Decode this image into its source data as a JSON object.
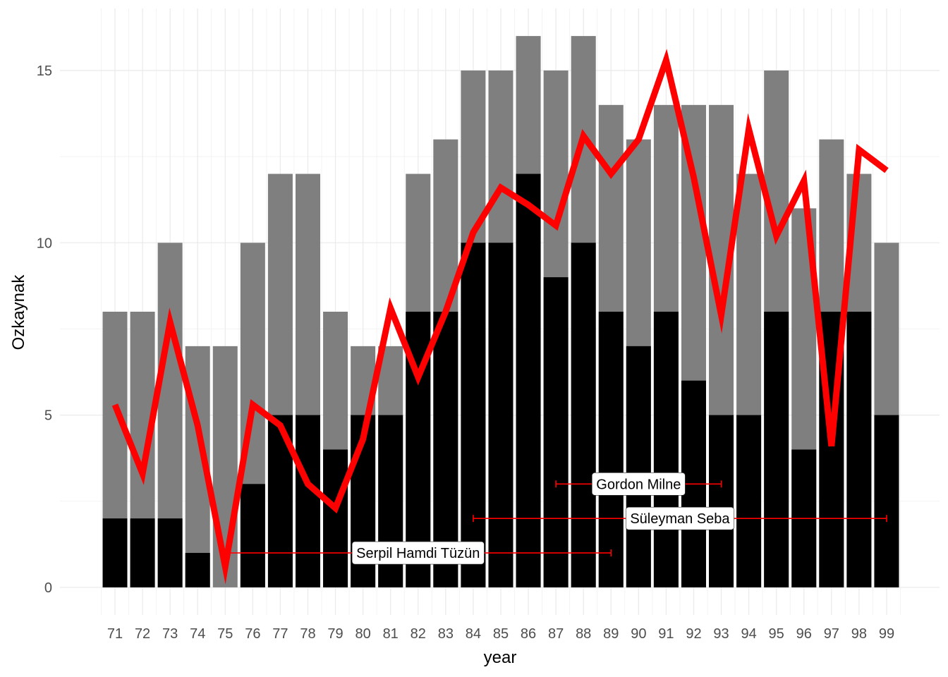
{
  "chart_data": {
    "type": "bar",
    "xlabel": "year",
    "ylabel": "Ozkaynak",
    "ylim": [
      -0.8,
      16.8
    ],
    "yticks": [
      0,
      5,
      10,
      15
    ],
    "grid": true,
    "categories": [
      "71",
      "72",
      "73",
      "74",
      "75",
      "76",
      "77",
      "78",
      "79",
      "80",
      "81",
      "82",
      "83",
      "84",
      "85",
      "86",
      "87",
      "88",
      "89",
      "90",
      "91",
      "92",
      "93",
      "94",
      "95",
      "96",
      "97",
      "98",
      "99"
    ],
    "series": [
      {
        "kind": "bar-total",
        "color": "#7f7f7f",
        "values": [
          8,
          8,
          10,
          7,
          7,
          10,
          12,
          12,
          8,
          7,
          7,
          12,
          13,
          15,
          15,
          16,
          15,
          16,
          14,
          13,
          14,
          14,
          14,
          12,
          15,
          11,
          13,
          12,
          10
        ]
      },
      {
        "kind": "bar-part",
        "color": "#000000",
        "values": [
          2,
          2,
          2,
          1,
          0,
          3,
          5,
          5,
          4,
          5,
          5,
          8,
          8,
          10,
          10,
          12,
          9,
          10,
          8,
          7,
          8,
          6,
          5,
          5,
          8,
          4,
          8,
          8,
          5
        ]
      },
      {
        "kind": "line",
        "color": "#ff0000",
        "values": [
          5.3,
          3.3,
          7.7,
          4.7,
          0.6,
          5.3,
          4.7,
          3.0,
          2.3,
          4.3,
          8.1,
          6.1,
          8.0,
          10.3,
          11.6,
          11.1,
          10.5,
          13.1,
          12.0,
          13.0,
          15.3,
          11.9,
          7.9,
          13.3,
          10.2,
          11.8,
          4.1,
          12.7,
          12.1
        ]
      }
    ],
    "annotations": [
      {
        "label": "Gordon Milne",
        "start": "87",
        "end": "93",
        "y": 3
      },
      {
        "label": "Süleyman Seba",
        "start": "84",
        "end": "99",
        "y": 2
      },
      {
        "label": "Serpil Hamdi Tüzün",
        "start": "75",
        "end": "89",
        "y": 1
      }
    ],
    "annotation_color": "#ff0000"
  }
}
